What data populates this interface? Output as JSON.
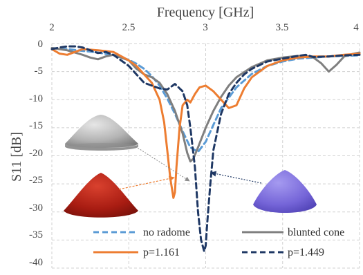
{
  "chart_data": {
    "type": "line",
    "title": "",
    "xlabel": "Frequency [GHz]",
    "ylabel": "S11 [dB]",
    "xlim": [
      2,
      4
    ],
    "ylim": [
      -40,
      0
    ],
    "x_ticks": [
      "2",
      "2.5",
      "3",
      "3.5",
      "4"
    ],
    "y_ticks": [
      "0",
      "-5",
      "-10",
      "-15",
      "-20",
      "-25",
      "-30",
      "-35",
      "-40"
    ],
    "x_axis_position": "top",
    "grid": "dashed",
    "legend_position": "bottom, two columns inside plot",
    "series": [
      {
        "name": "no radome",
        "color": "#5b9bd5",
        "dash": "dashed",
        "x": [
          2.0,
          2.1,
          2.2,
          2.3,
          2.4,
          2.5,
          2.55,
          2.6,
          2.65,
          2.7,
          2.75,
          2.8,
          2.85,
          2.9,
          2.95,
          3.0,
          3.05,
          3.1,
          3.2,
          3.3,
          3.4,
          3.5,
          3.6,
          3.7,
          3.8,
          3.9,
          4.0
        ],
        "values": [
          -0.8,
          -1.0,
          -1.3,
          -1.6,
          -2.1,
          -2.9,
          -3.6,
          -4.5,
          -5.8,
          -7.5,
          -9.8,
          -12.5,
          -15.6,
          -18.5,
          -19.3,
          -17.5,
          -14.5,
          -11.5,
          -7.8,
          -5.4,
          -4.0,
          -3.2,
          -2.7,
          -2.5,
          -2.3,
          -2.2,
          -2.1
        ]
      },
      {
        "name": "blunted cone",
        "color": "#7f7f7f",
        "dash": "solid",
        "x": [
          2.0,
          2.1,
          2.2,
          2.25,
          2.3,
          2.35,
          2.4,
          2.5,
          2.55,
          2.6,
          2.65,
          2.7,
          2.75,
          2.8,
          2.85,
          2.88,
          2.9,
          2.92,
          2.95,
          3.0,
          3.05,
          3.1,
          3.15,
          3.2,
          3.3,
          3.4,
          3.5,
          3.6,
          3.65,
          3.7,
          3.75,
          3.8,
          3.85,
          3.9,
          3.95,
          4.0
        ],
        "values": [
          -0.8,
          -1.2,
          -2.0,
          -2.5,
          -2.8,
          -2.3,
          -2.0,
          -3.0,
          -4.5,
          -5.5,
          -6.0,
          -7.0,
          -9.0,
          -12.0,
          -16.0,
          -19.5,
          -21.0,
          -20.5,
          -18.5,
          -15.0,
          -12.0,
          -9.5,
          -7.5,
          -6.0,
          -4.2,
          -3.0,
          -2.5,
          -2.2,
          -2.2,
          -2.5,
          -3.5,
          -5.0,
          -3.8,
          -2.3,
          -1.9,
          -1.6
        ]
      },
      {
        "name": "p=1.161",
        "color": "#ed7d31",
        "dash": "solid",
        "x": [
          2.0,
          2.05,
          2.1,
          2.15,
          2.2,
          2.3,
          2.4,
          2.5,
          2.55,
          2.6,
          2.65,
          2.7,
          2.73,
          2.75,
          2.77,
          2.79,
          2.8,
          2.81,
          2.83,
          2.85,
          2.88,
          2.9,
          2.93,
          2.96,
          3.0,
          3.05,
          3.1,
          3.15,
          3.2,
          3.25,
          3.3,
          3.4,
          3.5,
          3.6,
          3.7,
          3.8,
          3.9,
          4.0
        ],
        "values": [
          -1.0,
          -1.8,
          -2.0,
          -1.5,
          -1.0,
          -1.2,
          -1.5,
          -3.0,
          -4.0,
          -5.5,
          -7.0,
          -10.0,
          -14.0,
          -19.0,
          -24.0,
          -27.5,
          -26.5,
          -22.0,
          -15.0,
          -11.0,
          -10.0,
          -10.5,
          -9.0,
          -7.8,
          -7.5,
          -8.5,
          -10.0,
          -11.5,
          -11.0,
          -8.0,
          -6.0,
          -4.0,
          -3.0,
          -2.5,
          -2.3,
          -2.3,
          -2.0,
          -1.8
        ]
      },
      {
        "name": "p=1.449",
        "color": "#1f3864",
        "dash": "dashed",
        "x": [
          2.0,
          2.05,
          2.1,
          2.15,
          2.2,
          2.25,
          2.3,
          2.35,
          2.4,
          2.5,
          2.55,
          2.6,
          2.65,
          2.7,
          2.75,
          2.8,
          2.85,
          2.88,
          2.9,
          2.93,
          2.95,
          2.97,
          2.99,
          3.0,
          3.01,
          3.03,
          3.05,
          3.1,
          3.15,
          3.2,
          3.25,
          3.3,
          3.4,
          3.5,
          3.6,
          3.65,
          3.7,
          3.8,
          3.9,
          4.0
        ],
        "values": [
          -1.0,
          -0.7,
          -0.5,
          -0.5,
          -0.7,
          -1.2,
          -1.7,
          -1.5,
          -2.0,
          -4.0,
          -5.5,
          -7.0,
          -7.5,
          -8.0,
          -8.2,
          -7.2,
          -8.5,
          -11.0,
          -15.0,
          -22.0,
          -30.0,
          -35.0,
          -37.0,
          -36.0,
          -32.0,
          -25.0,
          -19.0,
          -12.5,
          -9.0,
          -7.0,
          -5.5,
          -4.5,
          -3.2,
          -2.7,
          -2.2,
          -2.0,
          -2.4,
          -2.3,
          -2.1,
          -2.0
        ]
      }
    ]
  }
}
